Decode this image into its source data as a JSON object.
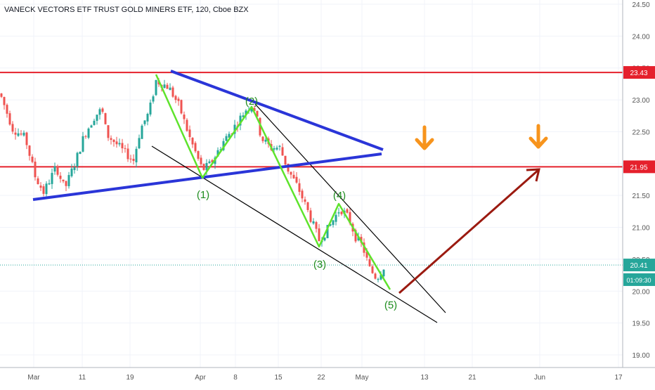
{
  "chart_data": {
    "type": "candlestick",
    "title": "VANECK VECTORS ETF TRUST GOLD MINERS ETF, 120, Cboe BZX",
    "ylim": [
      18.85,
      24.6
    ],
    "y_ticks": [
      "19.00",
      "19.50",
      "20.00",
      "20.50",
      "21.00",
      "21.50",
      "22.00",
      "22.50",
      "23.00",
      "23.50",
      "24.00",
      "24.50"
    ],
    "x_ticks": [
      "Mar",
      "11",
      "19",
      "Apr",
      "8",
      "15",
      "22",
      "May",
      "13",
      "21",
      "Jun",
      "17"
    ],
    "price_labels": [
      {
        "value": 23.43,
        "text": "23.43",
        "color": "#e5202c"
      },
      {
        "value": 21.95,
        "text": "21.95",
        "color": "#e5202c"
      },
      {
        "value": 20.41,
        "text": "20.41",
        "color": "#26a69a"
      },
      {
        "value": 20.18,
        "text": "01:09:30",
        "color": "#26a69a"
      }
    ],
    "horizontal_lines": [
      {
        "value": 23.43,
        "color": "#e5202c"
      },
      {
        "value": 21.95,
        "color": "#e5202c"
      },
      {
        "value": 20.41,
        "color": "#26a69a",
        "dotted": true
      }
    ],
    "wave_labels": [
      "(1)",
      "(2)",
      "(3)",
      "(4)",
      "(5)"
    ],
    "colors": {
      "up": "#26a69a",
      "down": "#ef5350",
      "wave": "#5ee32c",
      "wedge": "#000000",
      "triangle": "#2a35d8",
      "arrow": "#9b1a10",
      "down_arrows": "#f7941d"
    }
  }
}
